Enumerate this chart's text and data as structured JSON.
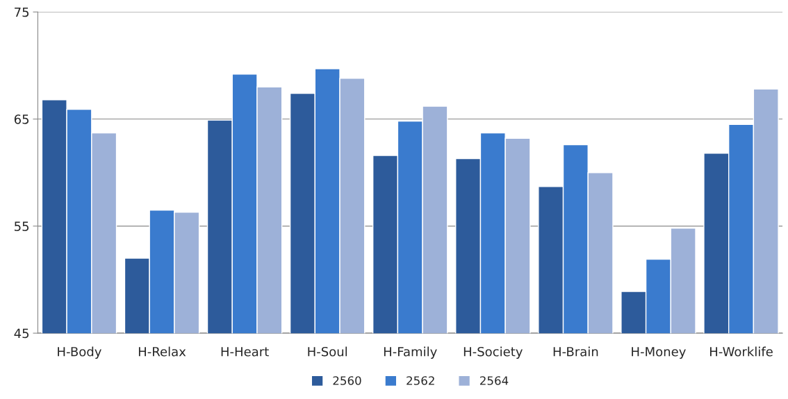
{
  "chart_data": {
    "type": "bar",
    "categories": [
      "H-Body",
      "H-Relax",
      "H-Heart",
      "H-Soul",
      "H-Family",
      "H-Society",
      "H-Brain",
      "H-Money",
      "H-Worklife"
    ],
    "series": [
      {
        "name": "2560",
        "color": "#2d5b9b",
        "values": [
          66.8,
          52.0,
          64.9,
          67.4,
          61.6,
          61.3,
          58.7,
          48.9,
          61.8
        ]
      },
      {
        "name": "2562",
        "color": "#3a7bce",
        "values": [
          65.9,
          56.5,
          69.2,
          69.7,
          64.8,
          63.7,
          62.6,
          51.9,
          64.5
        ]
      },
      {
        "name": "2564",
        "color": "#9db1d8",
        "values": [
          63.7,
          56.3,
          68.0,
          68.8,
          66.2,
          63.2,
          60.0,
          54.8,
          67.8
        ]
      }
    ],
    "ylim": [
      45,
      75
    ],
    "yticks": [
      45,
      55,
      65,
      75
    ],
    "grid": "y",
    "legend": "bottom"
  }
}
